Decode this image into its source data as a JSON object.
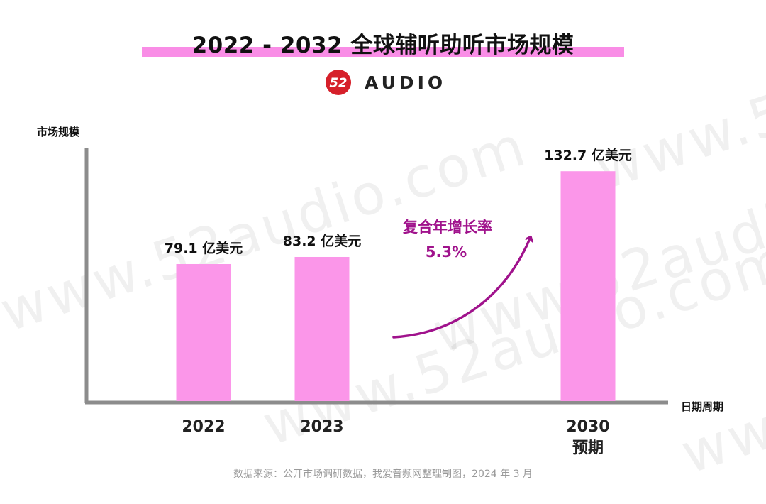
{
  "title": "2022 - 2032 全球辅听助听市场规模",
  "logo": {
    "mark": "52",
    "text": "AUDIO",
    "mark_color": "#d6202a"
  },
  "watermark": "www.52audio.com",
  "source": "数据来源：公开市场调研数据，我爱音频网整理制图，2024 年 3 月",
  "colors": {
    "bar": "#fb96e9",
    "title_highlight": "#f98de6",
    "arrow": "#a0128c",
    "cagr_text": "#a0128c",
    "axis": "#8c8c8c"
  },
  "chart_data": {
    "type": "bar",
    "title": "2022 - 2032 全球辅听助听市场规模",
    "ylabel": "市场规模",
    "xlabel": "日期周期",
    "ylim": [
      0,
      150
    ],
    "grid": false,
    "categories": [
      "2022",
      "2023",
      "2030"
    ],
    "category_sublabels": [
      "",
      "",
      "预期"
    ],
    "values": [
      79.1,
      83.2,
      132.7
    ],
    "unit": "亿美元",
    "data_labels": [
      "79.1 亿美元",
      "83.2 亿美元",
      "132.7 亿美元"
    ],
    "annotation": {
      "label": "复合年增长率",
      "value": "5.3%"
    }
  }
}
